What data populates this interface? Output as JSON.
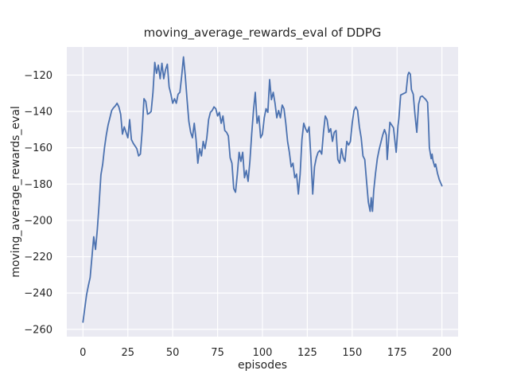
{
  "style": {
    "fig_bg": "#ffffff",
    "plot_bg": "#eaeaf2",
    "grid_color": "#ffffff",
    "text_color": "#262626",
    "line_color": "#4c72b0",
    "line_width": 1.8
  },
  "chart_data": {
    "type": "line",
    "title": "moving_average_rewards_eval of DDPG",
    "xlabel": "episodes",
    "ylabel": "moving_average_rewards_eval",
    "x_ticks": [
      0,
      25,
      50,
      75,
      100,
      125,
      150,
      175,
      200
    ],
    "y_ticks": [
      -120,
      -140,
      -160,
      -180,
      -200,
      -220,
      -240,
      -260
    ],
    "xlim": [
      -9,
      209
    ],
    "ylim": [
      -264,
      -104.5
    ],
    "grid": true,
    "legend": false,
    "series": [
      {
        "name": "moving_average_rewards_eval",
        "color": "#4c72b0",
        "points": [
          [
            0,
            -256
          ],
          [
            2,
            -241
          ],
          [
            3,
            -236
          ],
          [
            4,
            -231.5
          ],
          [
            6,
            -209
          ],
          [
            7,
            -216
          ],
          [
            8,
            -205
          ],
          [
            9,
            -191
          ],
          [
            10,
            -175
          ],
          [
            11,
            -169
          ],
          [
            12,
            -160
          ],
          [
            13,
            -153
          ],
          [
            14,
            -147.5
          ],
          [
            15,
            -143.5
          ],
          [
            16,
            -139.5
          ],
          [
            17,
            -138
          ],
          [
            18,
            -137
          ],
          [
            19,
            -135.5
          ],
          [
            20,
            -137.5
          ],
          [
            21,
            -141.5
          ],
          [
            22,
            -152.5
          ],
          [
            23,
            -148.5
          ],
          [
            24,
            -151.5
          ],
          [
            25,
            -154.5
          ],
          [
            26,
            -144.5
          ],
          [
            27,
            -155.5
          ],
          [
            28,
            -157.5
          ],
          [
            30,
            -160.5
          ],
          [
            31,
            -164.5
          ],
          [
            32,
            -163.5
          ],
          [
            33,
            -150.5
          ],
          [
            34,
            -133
          ],
          [
            35,
            -134.5
          ],
          [
            36,
            -141.5
          ],
          [
            37,
            -141
          ],
          [
            38,
            -140
          ],
          [
            39,
            -129.5
          ],
          [
            40,
            -113
          ],
          [
            41,
            -119
          ],
          [
            42,
            -114.5
          ],
          [
            43,
            -122
          ],
          [
            44,
            -113.5
          ],
          [
            45,
            -122
          ],
          [
            46,
            -117
          ],
          [
            47,
            -114
          ],
          [
            48,
            -126.5
          ],
          [
            49,
            -130.5
          ],
          [
            50,
            -135.5
          ],
          [
            51,
            -133
          ],
          [
            52,
            -135.5
          ],
          [
            53,
            -130.5
          ],
          [
            54,
            -129.5
          ],
          [
            55,
            -120.5
          ],
          [
            56,
            -110
          ],
          [
            57,
            -120.5
          ],
          [
            58,
            -133.5
          ],
          [
            59,
            -145.5
          ],
          [
            60,
            -151.5
          ],
          [
            61,
            -154.5
          ],
          [
            62,
            -146.5
          ],
          [
            63,
            -155.5
          ],
          [
            64,
            -168.5
          ],
          [
            65,
            -160.5
          ],
          [
            66,
            -164.5
          ],
          [
            67,
            -156.5
          ],
          [
            68,
            -160.5
          ],
          [
            69,
            -154.5
          ],
          [
            70,
            -144.5
          ],
          [
            71,
            -140.5
          ],
          [
            72,
            -139.5
          ],
          [
            73,
            -137.5
          ],
          [
            74,
            -138.5
          ],
          [
            75,
            -142.5
          ],
          [
            76,
            -140.5
          ],
          [
            77,
            -146.5
          ],
          [
            78,
            -142.5
          ],
          [
            79,
            -150.5
          ],
          [
            80,
            -151.5
          ],
          [
            81,
            -153.5
          ],
          [
            82,
            -165.5
          ],
          [
            83,
            -168.5
          ],
          [
            84,
            -182.5
          ],
          [
            85,
            -184.5
          ],
          [
            86,
            -174.5
          ],
          [
            87,
            -162.5
          ],
          [
            88,
            -167.5
          ],
          [
            89,
            -162.5
          ],
          [
            90,
            -176.5
          ],
          [
            91,
            -172.5
          ],
          [
            92,
            -178.5
          ],
          [
            93,
            -167.5
          ],
          [
            94,
            -152.5
          ],
          [
            95,
            -139.5
          ],
          [
            96,
            -129.5
          ],
          [
            97,
            -146.5
          ],
          [
            98,
            -142.5
          ],
          [
            99,
            -154.5
          ],
          [
            100,
            -152.5
          ],
          [
            101,
            -143.5
          ],
          [
            102,
            -138.5
          ],
          [
            103,
            -140.5
          ],
          [
            104,
            -122.5
          ],
          [
            105,
            -133.5
          ],
          [
            106,
            -129.5
          ],
          [
            107,
            -135.5
          ],
          [
            108,
            -143.5
          ],
          [
            109,
            -139.5
          ],
          [
            110,
            -143.5
          ],
          [
            111,
            -136.5
          ],
          [
            112,
            -138.5
          ],
          [
            113,
            -146.5
          ],
          [
            114,
            -156.5
          ],
          [
            115,
            -162.5
          ],
          [
            116,
            -170.5
          ],
          [
            117,
            -168.5
          ],
          [
            118,
            -176.5
          ],
          [
            119,
            -174.5
          ],
          [
            120,
            -185.5
          ],
          [
            121,
            -174.5
          ],
          [
            122,
            -155.5
          ],
          [
            123,
            -146.5
          ],
          [
            124,
            -149.5
          ],
          [
            125,
            -151.5
          ],
          [
            126,
            -148.5
          ],
          [
            127,
            -165.5
          ],
          [
            128,
            -185.5
          ],
          [
            129,
            -170.5
          ],
          [
            130,
            -165.5
          ],
          [
            131,
            -162.5
          ],
          [
            132,
            -161.5
          ],
          [
            133,
            -163.5
          ],
          [
            134,
            -151.5
          ],
          [
            135,
            -142.5
          ],
          [
            136,
            -144.5
          ],
          [
            137,
            -151.5
          ],
          [
            138,
            -149.5
          ],
          [
            139,
            -156.5
          ],
          [
            140,
            -151.5
          ],
          [
            141,
            -150.5
          ],
          [
            142,
            -166.5
          ],
          [
            143,
            -168.5
          ],
          [
            144,
            -160.5
          ],
          [
            145,
            -165.5
          ],
          [
            146,
            -167.5
          ],
          [
            147,
            -156.5
          ],
          [
            148,
            -158.5
          ],
          [
            149,
            -156.5
          ],
          [
            150,
            -146.5
          ],
          [
            151,
            -139.5
          ],
          [
            152,
            -137.5
          ],
          [
            153,
            -139.5
          ],
          [
            154,
            -148.5
          ],
          [
            155,
            -154.5
          ],
          [
            156,
            -164.5
          ],
          [
            157,
            -166.5
          ],
          [
            158,
            -178.5
          ],
          [
            159,
            -190
          ],
          [
            160,
            -195
          ],
          [
            160.6,
            -187.5
          ],
          [
            161.3,
            -195
          ],
          [
            162,
            -183.5
          ],
          [
            163,
            -174
          ],
          [
            164,
            -166
          ],
          [
            165,
            -161
          ],
          [
            166,
            -157
          ],
          [
            167,
            -153
          ],
          [
            168,
            -150
          ],
          [
            169,
            -153
          ],
          [
            169.5,
            -166.5
          ],
          [
            171,
            -146
          ],
          [
            172,
            -147.5
          ],
          [
            173,
            -149
          ],
          [
            174.5,
            -162.5
          ],
          [
            175.5,
            -148
          ],
          [
            176,
            -144
          ],
          [
            177,
            -131
          ],
          [
            178,
            -130.5
          ],
          [
            179,
            -130
          ],
          [
            180,
            -129.5
          ],
          [
            181,
            -120
          ],
          [
            181.6,
            -118.5
          ],
          [
            182.4,
            -119.5
          ],
          [
            183,
            -128
          ],
          [
            184,
            -130.5
          ],
          [
            185,
            -142
          ],
          [
            186,
            -151.5
          ],
          [
            187,
            -136
          ],
          [
            188,
            -132
          ],
          [
            189,
            -131.5
          ],
          [
            190,
            -132.5
          ],
          [
            191,
            -133.5
          ],
          [
            192,
            -135
          ],
          [
            192.5,
            -146
          ],
          [
            193,
            -160
          ],
          [
            194,
            -166
          ],
          [
            194.5,
            -163.5
          ],
          [
            195,
            -167
          ],
          [
            196,
            -170.5
          ],
          [
            196.5,
            -169
          ],
          [
            197.5,
            -174
          ],
          [
            198.5,
            -177.5
          ],
          [
            200,
            -181
          ]
        ]
      }
    ]
  }
}
